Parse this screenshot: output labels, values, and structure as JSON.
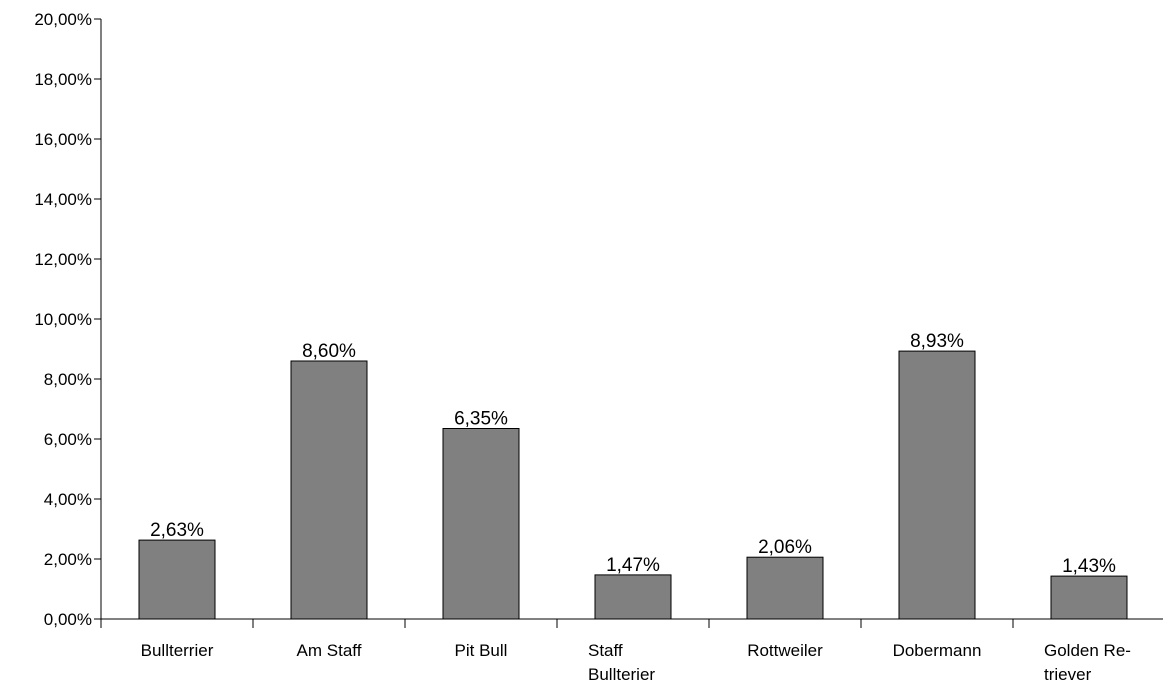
{
  "chart_data": {
    "type": "bar",
    "categories": [
      "Bullterrier",
      "Am Staff",
      "Pit Bull",
      "Staff Bullterier",
      "Rottweiler",
      "Dobermann",
      "Golden Retriever"
    ],
    "category_labels": [
      [
        "Bullterrier"
      ],
      [
        "Am Staff"
      ],
      [
        "Pit Bull"
      ],
      [
        "Staff",
        "Bullterier"
      ],
      [
        "Rottweiler"
      ],
      [
        "Dobermann"
      ],
      [
        "Golden Re-",
        "triever"
      ]
    ],
    "values": [
      2.63,
      8.6,
      6.35,
      1.47,
      2.06,
      8.93,
      1.43
    ],
    "value_labels": [
      "2,63%",
      "8,60%",
      "6,35%",
      "1,47%",
      "2,06%",
      "8,93%",
      "1,43%"
    ],
    "ylim": [
      0,
      20
    ],
    "yticks": [
      0,
      2,
      4,
      6,
      8,
      10,
      12,
      14,
      16,
      18,
      20
    ],
    "ytick_labels": [
      "0,00%",
      "2,00%",
      "4,00%",
      "6,00%",
      "8,00%",
      "10,00%",
      "12,00%",
      "14,00%",
      "16,00%",
      "18,00%",
      "20,00%"
    ],
    "title": "",
    "xlabel": "",
    "ylabel": "",
    "grid": false,
    "legend": "none",
    "bar_color": "#808080",
    "bar_edge_color": "#000000"
  }
}
